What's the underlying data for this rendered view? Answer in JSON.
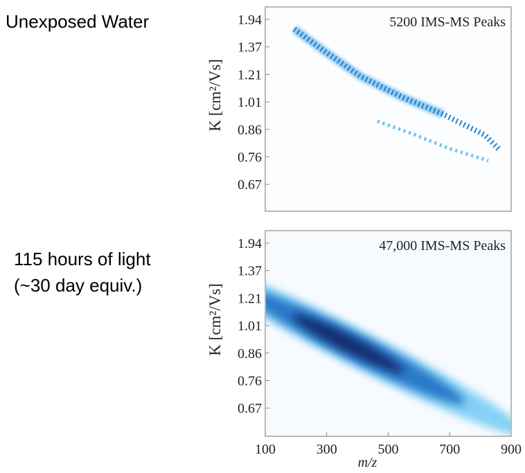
{
  "chart_data": [
    {
      "type": "heatmap",
      "label": [
        "Unexposed Water"
      ],
      "annotation": "5200 IMS-MS Peaks",
      "ylabel": "K [cm²/Vs]",
      "yticks": [
        1.94,
        1.37,
        1.21,
        1.01,
        0.86,
        0.76,
        0.67
      ],
      "xlim": [
        100,
        900
      ]
    },
    {
      "type": "heatmap",
      "label": [
        "115 hours of light",
        "(~30 day equiv.)"
      ],
      "annotation": "47,000 IMS-MS Peaks",
      "ylabel": "K [cm²/Vs]",
      "yticks": [
        1.94,
        1.37,
        1.21,
        1.01,
        0.86,
        0.76,
        0.67
      ],
      "xlabel": "m/z",
      "xlim": [
        100,
        900
      ],
      "xticks": [
        100,
        300,
        500,
        700,
        900
      ]
    }
  ]
}
